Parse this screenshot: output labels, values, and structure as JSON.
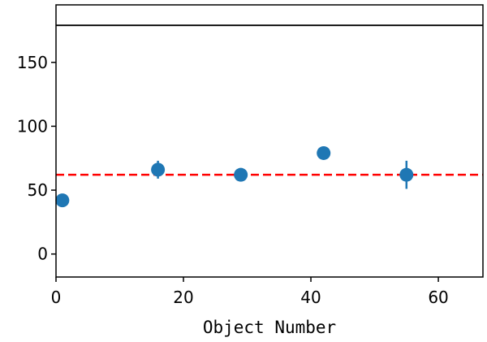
{
  "chart_data": {
    "type": "scatter",
    "xlabel": "Object Number",
    "ylabel": "",
    "xlim": [
      0,
      67
    ],
    "ylim": [
      -18,
      195
    ],
    "xticks": [
      0,
      20,
      40,
      60
    ],
    "yticks": [
      0,
      50,
      100,
      150
    ],
    "grid": false,
    "points": [
      {
        "x": 1,
        "y": 42,
        "err": 2
      },
      {
        "x": 16,
        "y": 66,
        "err": 7
      },
      {
        "x": 29,
        "y": 62,
        "err": 2
      },
      {
        "x": 42,
        "y": 79,
        "err": 5
      },
      {
        "x": 55,
        "y": 62,
        "err": 11
      }
    ],
    "reference_lines": [
      {
        "y": 62,
        "style": "dashed",
        "color": "#ff0000"
      },
      {
        "y": 179,
        "style": "solid",
        "color": "#000000"
      }
    ],
    "colors": {
      "points": "#1f77b4",
      "dashed_line": "#ff0000",
      "solid_line": "#000000"
    }
  }
}
